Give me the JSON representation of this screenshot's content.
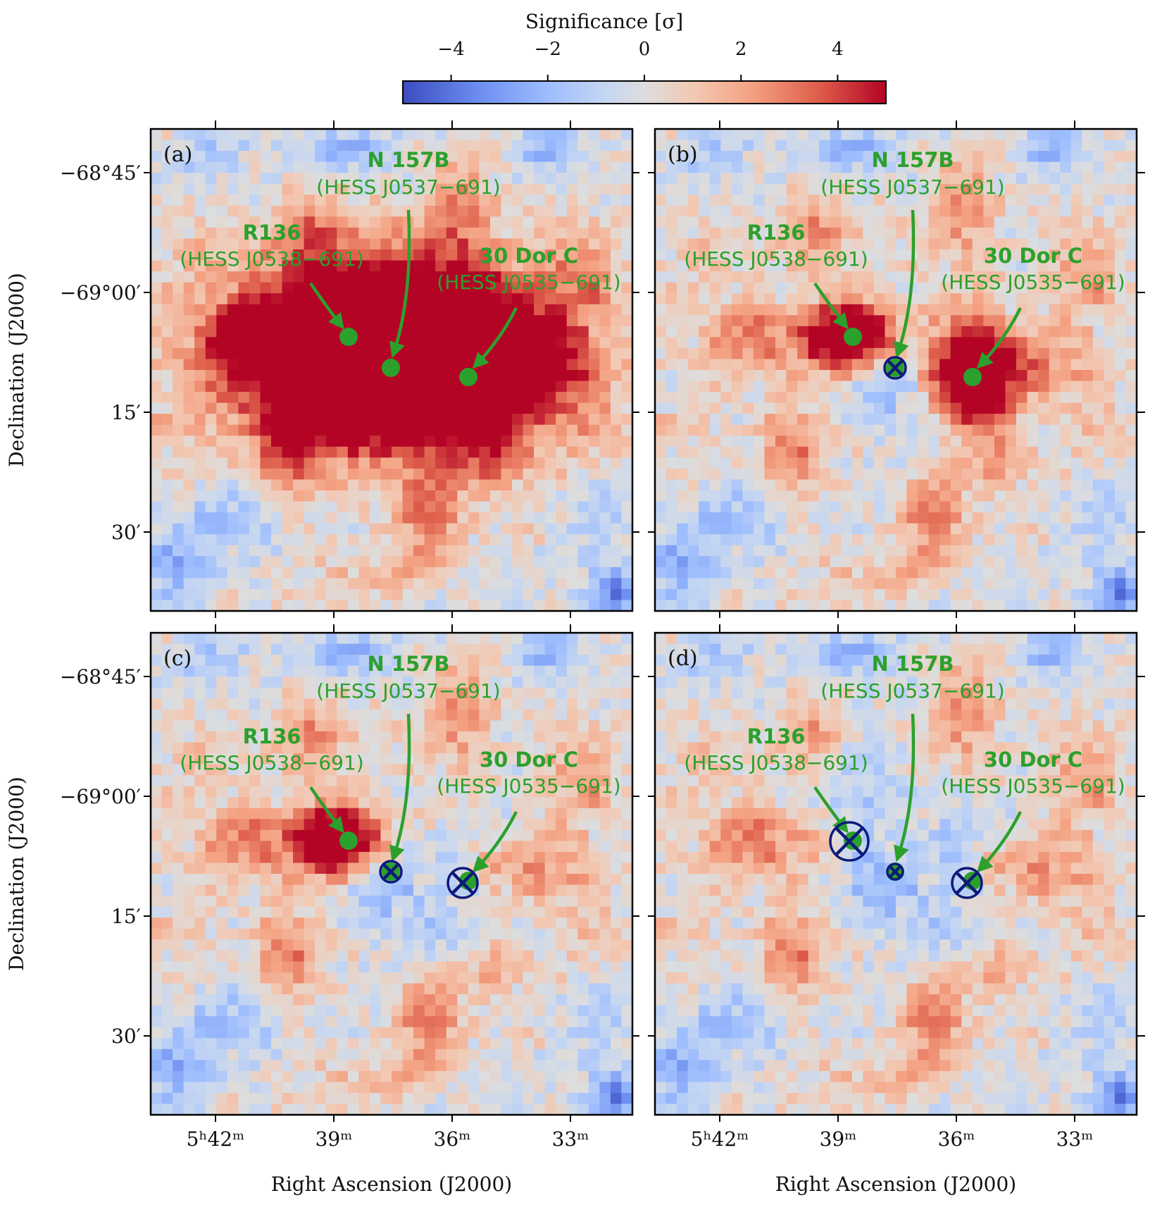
{
  "figure": {
    "colorbar": {
      "label": "Significance [σ]",
      "ticks": [
        "−4",
        "−2",
        "0",
        "2",
        "4"
      ],
      "tick_values": [
        -4,
        -2,
        0,
        2,
        4
      ],
      "range": [
        -5,
        5
      ],
      "colormap": "coolwarm",
      "low_color": "#3b4cc0",
      "mid_color": "#dddddd",
      "high_color": "#b40426"
    },
    "axes": {
      "xlabel": "Right Ascension (J2000)",
      "ylabel": "Declination (J2000)",
      "xticks": [
        "5ʰ42ᵐ",
        "39ᵐ",
        "36ᵐ",
        "33ᵐ"
      ],
      "yticks": [
        "−68°45′",
        "−69°00′",
        "15′",
        "30′"
      ]
    },
    "sources": [
      {
        "name": "N 157B",
        "id": "(HESS J0537−691)"
      },
      {
        "name": "R136",
        "id": "(HESS J0538−691)"
      },
      {
        "name": "30 Dor C",
        "id": "(HESS J0535−691)"
      }
    ],
    "panels": [
      {
        "label": "(a)"
      },
      {
        "label": "(b)"
      },
      {
        "label": "(c)"
      },
      {
        "label": "(d)"
      }
    ],
    "colors": {
      "marker_green": "#2ca02c",
      "fitted_navy": "#0d1a7a"
    }
  },
  "chart_data": {
    "type": "heatmap",
    "title": "",
    "xlabel": "Right Ascension (J2000)",
    "ylabel": "Declination (J2000)",
    "colorbar_label": "Significance [σ]",
    "colorbar_range": [
      -5,
      5
    ],
    "x_ticks": [
      "5h42m",
      "39m",
      "36m",
      "33m"
    ],
    "y_ticks": [
      "-68°45′",
      "-69°00′",
      "15′",
      "30′"
    ],
    "panels": [
      {
        "label": "(a)",
        "saturated_region": "N 157B / R136 / 30 Dor C complex above 5σ",
        "hotspots_sigma": [
          5,
          5,
          5,
          3,
          3,
          3
        ],
        "fitted_sources": []
      },
      {
        "label": "(b)",
        "hotspots_sigma": [
          5,
          5,
          3,
          3,
          3
        ],
        "fitted_sources": [
          "N 157B"
        ]
      },
      {
        "label": "(c)",
        "hotspots_sigma": [
          5,
          3,
          3,
          3
        ],
        "fitted_sources": [
          "N 157B",
          "30 Dor C"
        ]
      },
      {
        "label": "(d)",
        "hotspots_sigma": [
          3,
          3,
          3
        ],
        "fitted_sources": [
          "N 157B",
          "30 Dor C",
          "R136"
        ]
      }
    ]
  }
}
